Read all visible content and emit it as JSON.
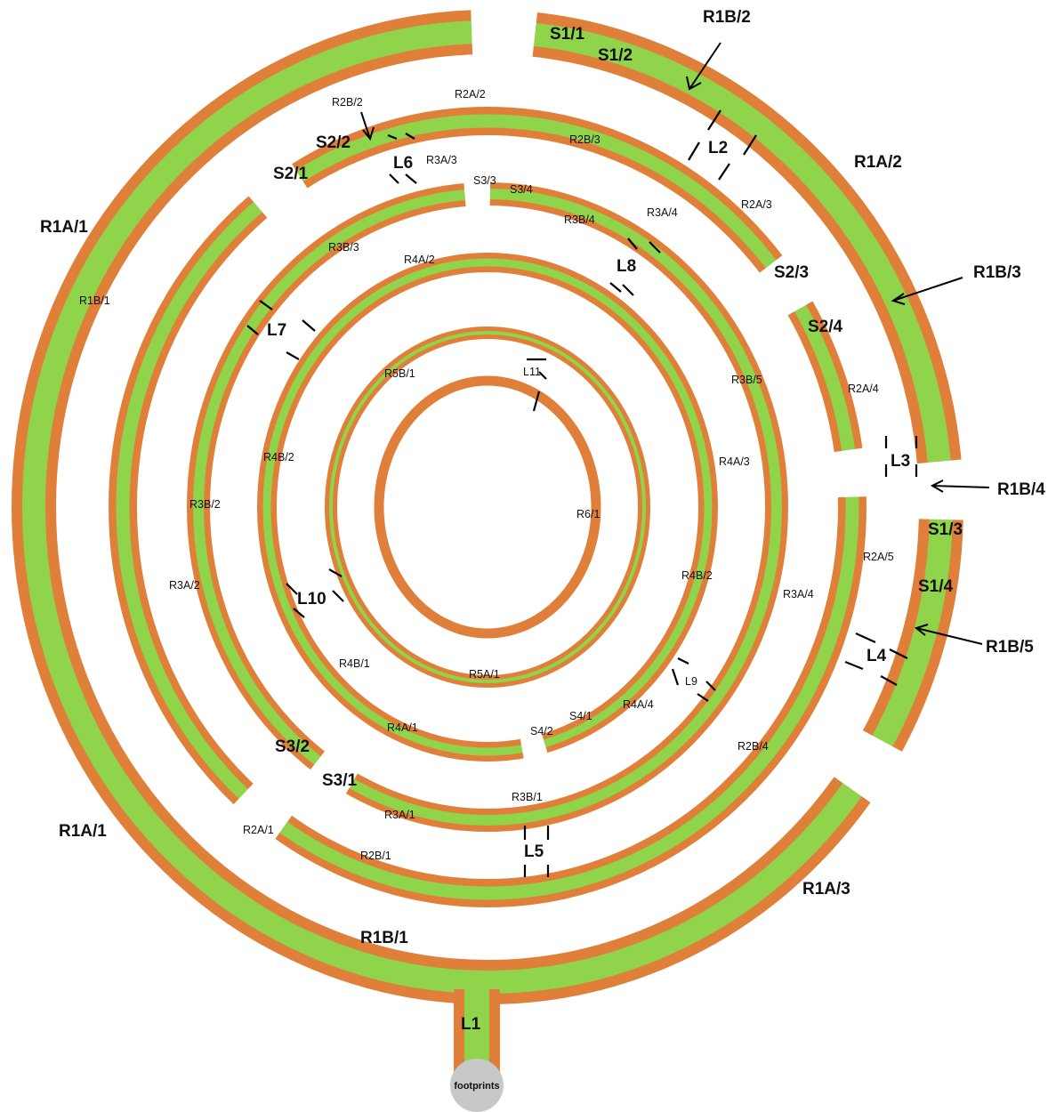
{
  "colors": {
    "path_edge": "#e07f39",
    "path_fill": "#8fd44a",
    "background": "#ffffff",
    "ink": "#000000",
    "start_circle": "#c8c8c8"
  },
  "big_labels": {
    "s1_1": "S1/1",
    "s1_2": "S1/2",
    "s1_3": "S1/3",
    "s1_4": "S1/4",
    "s2_1": "S2/1",
    "s2_2": "S2/2",
    "s2_3": "S2/3",
    "s2_4": "S2/4",
    "s3_1": "S3/1",
    "s3_2": "S3/2",
    "r1a_1_top": "R1A/1",
    "r1a_1_bottom": "R1A/1",
    "r1a_2": "R1A/2",
    "r1a_3": "R1A/3",
    "r1b_1_bottom": "R1B/1",
    "r1b_2": "R1B/2",
    "r1b_3": "R1B/3",
    "r1b_4": "R1B/4",
    "r1b_5": "R1B/5",
    "l1": "L1",
    "l2": "L2",
    "l3": "L3",
    "l4": "L4",
    "l5": "L5",
    "l6": "L6",
    "l7": "L7",
    "l8": "L8",
    "l10": "L10"
  },
  "small_labels": {
    "r1b_1_side": "R1B/1",
    "r2a_1": "R2A/1",
    "r2a_2": "R2A/2",
    "r2a_3": "R2A/3",
    "r2a_4": "R2A/4",
    "r2a_5": "R2A/5",
    "r2b_1": "R2B/1",
    "r2b_2": "R2B/2",
    "r2b_3": "R2B/3",
    "r2b_4": "R2B/4",
    "r3a_1": "R3A/1",
    "r3a_2": "R3A/2",
    "r3a_3": "R3A/3",
    "r3a_4_right": "R3A/4",
    "r3a_4_top": "R3A/4",
    "r3b_1": "R3B/1",
    "r3b_2": "R3B/2",
    "r3b_3": "R3B/3",
    "r3b_4": "R3B/4",
    "r3b_5": "R3B/5",
    "s3_3": "S3/3",
    "s3_4": "S3/4",
    "r4a_1": "R4A/1",
    "r4a_2": "R4A/2",
    "r4a_3": "R4A/3",
    "r4a_4": "R4A/4",
    "r4b_1": "R4B/1",
    "r4b_2_left": "R4B/2",
    "r4b_2_right": "R4B/2",
    "s4_1": "S4/1",
    "s4_2": "S4/2",
    "r5a_1": "R5A/1",
    "r5b_1": "R5B/1",
    "r6_1": "R6/1",
    "l9": "L9",
    "l11": "L11"
  },
  "start": {
    "label": "footprints"
  }
}
